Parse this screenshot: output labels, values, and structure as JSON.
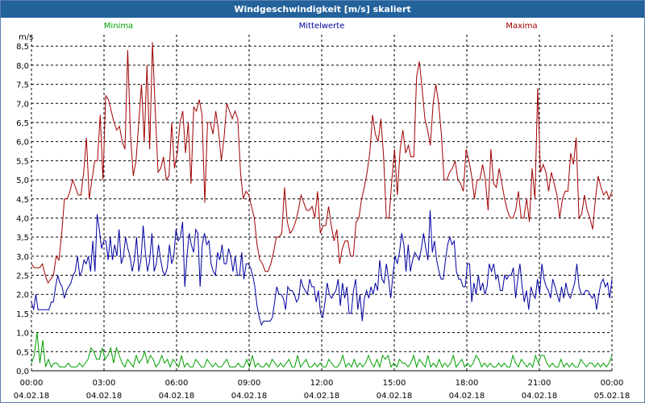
{
  "window": {
    "title": "Windgeschwindigkeit [m/s] skaliert"
  },
  "chart_data": {
    "type": "line",
    "title": "Windgeschwindigkeit [m/s] skaliert",
    "ylabel": "m/s",
    "ylim": [
      0,
      8.5
    ],
    "yticks": [
      "0,0",
      "0,5",
      "1,0",
      "1,5",
      "2,0",
      "2,5",
      "3,0",
      "3,5",
      "4,0",
      "4,5",
      "5,0",
      "5,5",
      "6,0",
      "6,5",
      "7,0",
      "7,5",
      "8,0",
      "8,5"
    ],
    "xlim": [
      0,
      24
    ],
    "xticks": [
      {
        "time": "00:00",
        "date": "04.02.18"
      },
      {
        "time": "03:00",
        "date": "04.02.18"
      },
      {
        "time": "06:00",
        "date": "04.02.18"
      },
      {
        "time": "09:00",
        "date": "04.02.18"
      },
      {
        "time": "12:00",
        "date": "04.02.18"
      },
      {
        "time": "15:00",
        "date": "04.02.18"
      },
      {
        "time": "18:00",
        "date": "04.02.18"
      },
      {
        "time": "21:00",
        "date": "04.02.18"
      },
      {
        "time": "00:00",
        "date": "05.02.18"
      }
    ],
    "grid": true,
    "legend_position": "top",
    "series": [
      {
        "name": "Minima",
        "color": "#00a000",
        "values": [
          0.2,
          0.4,
          1.0,
          0.2,
          0.8,
          0.1,
          0.3,
          0.1,
          0.2,
          0.2,
          0.1,
          0.1,
          0.1,
          0.2,
          0.1,
          0.1,
          0.1,
          0.2,
          0.1,
          0.2,
          0.3,
          0.6,
          0.5,
          0.3,
          0.3,
          0.6,
          0.3,
          0.4,
          0.6,
          0.2,
          0.6,
          0.4,
          0.2,
          0.1,
          0.3,
          0.2,
          0.1,
          0.4,
          0.2,
          0.3,
          0.5,
          0.2,
          0.4,
          0.3,
          0.1,
          0.2,
          0.4,
          0.2,
          0.3,
          0.1,
          0.3,
          0.2,
          0.1,
          0.4,
          0.1,
          0.2,
          0.1,
          0.1,
          0.3,
          0.2,
          0.1,
          0.1,
          0.3,
          0.2,
          0.1,
          0.2,
          0.1,
          0.1,
          0.2,
          0.3,
          0.1,
          0.1,
          0.1,
          0.2,
          0.1,
          0.1,
          0.3,
          0.1,
          0.4,
          0.1,
          0.2,
          0.1,
          0.1,
          0.2,
          0.1,
          0.3,
          0.2,
          0.1,
          0.2,
          0.1,
          0.2,
          0.3,
          0.1,
          0.1,
          0.4,
          0.1,
          0.2,
          0.3,
          0.1,
          0.1,
          0.2,
          0.1,
          0.2,
          0.1,
          0.1,
          0.3,
          0.2,
          0.1,
          0.1,
          0.2,
          0.4,
          0.1,
          0.2,
          0.1,
          0.3,
          0.1,
          0.2,
          0.1,
          0.2,
          0.4,
          0.2,
          0.1,
          0.3,
          0.1,
          0.4,
          0.3,
          0.4,
          0.1,
          0.2,
          0.1,
          0.3,
          0.2,
          0.2,
          0.1,
          0.2,
          0.4,
          0.1,
          0.3,
          0.2,
          0.1,
          0.4,
          0.1,
          0.2,
          0.1,
          0.3,
          0.1,
          0.2,
          0.1,
          0.2,
          0.4,
          0.1,
          0.2,
          0.3,
          0.1,
          0.2,
          0.1,
          0.2,
          0.4,
          0.3,
          0.1,
          0.2,
          0.1,
          0.2,
          0.1,
          0.1,
          0.2,
          0.1,
          0.2,
          0.1,
          0.1,
          0.4,
          0.2,
          0.1,
          0.3,
          0.2,
          0.1,
          0.2,
          0.1,
          0.4,
          0.2,
          0.4,
          0.4,
          0.2,
          0.1,
          0.2,
          0.1,
          0.1,
          0.3,
          0.1,
          0.2,
          0.1,
          0.2,
          0.1,
          0.1,
          0.3,
          0.2,
          0.1,
          0.2,
          0.2,
          0.1,
          0.2,
          0.1,
          0.2,
          0.1,
          0.2,
          0.4
        ]
      },
      {
        "name": "Mittelwerte",
        "color": "#0000a0",
        "values": [
          1.8,
          1.6,
          2.0,
          1.6,
          1.6,
          1.6,
          1.6,
          1.6,
          1.6,
          1.8,
          1.8,
          2.2,
          2.5,
          2.3,
          2.2,
          1.9,
          2.1,
          2.2,
          2.3,
          2.5,
          2.6,
          3.0,
          2.5,
          2.6,
          2.9,
          2.8,
          3.0,
          2.6,
          3.4,
          2.6,
          4.1,
          3.7,
          3.2,
          3.4,
          3.4,
          2.9,
          3.5,
          2.9,
          3.3,
          3.0,
          3.7,
          2.8,
          3.0,
          3.5,
          3.2,
          3.0,
          2.6,
          2.9,
          3.5,
          2.6,
          2.9,
          3.8,
          3.1,
          2.6,
          2.9,
          3.6,
          2.6,
          2.8,
          3.3,
          2.9,
          2.6,
          2.5,
          2.7,
          3.3,
          2.8,
          3.0,
          3.7,
          3.4,
          3.5,
          3.9,
          2.2,
          3.0,
          3.6,
          3.3,
          3.1,
          3.7,
          3.6,
          2.2,
          3.3,
          3.6,
          3.3,
          3.4,
          2.8,
          2.6,
          2.5,
          3.1,
          2.9,
          3.3,
          2.8,
          2.8,
          3.2,
          3.0,
          2.6,
          3.0,
          2.5,
          2.5,
          3.1,
          2.4,
          2.8,
          2.8,
          2.7,
          2.5,
          2.2,
          1.7,
          1.4,
          1.2,
          1.3,
          1.3,
          1.3,
          1.3,
          1.4,
          1.8,
          2.2,
          2.0,
          2.0,
          1.9,
          1.6,
          2.2,
          2.1,
          2.1,
          2.0,
          1.8,
          1.9,
          2.4,
          2.2,
          2.1,
          2.0,
          2.4,
          2.2,
          2.2,
          1.8,
          2.1,
          1.5,
          1.4,
          1.8,
          2.3,
          2.0,
          1.9,
          2.0,
          2.1,
          2.4,
          1.7,
          2.3,
          1.9,
          2.2,
          1.5,
          1.5,
          2.1,
          2.4,
          1.6,
          2.0,
          1.3,
          1.9,
          2.1,
          1.9,
          2.2,
          2.0,
          2.3,
          2.1,
          2.9,
          2.4,
          2.3,
          2.8,
          2.4,
          1.9,
          2.5,
          3.0,
          2.8,
          3.1,
          3.6,
          3.3,
          2.6,
          3.3,
          2.6,
          2.9,
          3.1,
          3.0,
          2.9,
          3.2,
          3.6,
          3.2,
          2.9,
          4.2,
          3.1,
          3.4,
          2.9,
          2.6,
          2.4,
          2.4,
          2.9,
          3.3,
          3.5,
          3.3,
          3.4,
          2.6,
          2.4,
          2.4,
          2.2,
          2.2,
          2.8,
          2.8,
          1.8,
          2.3,
          2.0,
          2.5,
          2.1,
          2.3,
          2.0,
          2.2,
          2.8,
          2.6,
          2.8,
          2.4,
          2.5,
          2.1,
          2.1,
          2.5,
          2.4,
          2.5,
          2.5,
          2.7,
          1.9,
          2.4,
          2.8,
          2.2,
          1.8,
          2.1,
          1.6,
          2.2,
          2.0,
          1.9,
          2.4,
          2.0,
          2.8,
          2.4,
          2.2,
          2.1,
          1.9,
          2.4,
          2.2,
          2.0,
          1.8,
          2.2,
          1.9,
          2.3,
          2.0,
          1.9,
          2.1,
          2.3,
          2.8,
          2.2,
          2.0,
          2.0,
          2.1,
          2.1,
          2.0,
          1.9,
          2.0,
          1.6,
          2.0,
          2.3,
          2.4,
          2.2,
          2.3,
          1.9,
          2.4
        ]
      },
      {
        "name": "Maxima",
        "color": "#a00000",
        "values": [
          2.8,
          2.7,
          2.7,
          2.7,
          2.8,
          2.5,
          2.3,
          2.4,
          2.5,
          3.0,
          2.9,
          3.6,
          4.5,
          4.5,
          4.7,
          5.0,
          4.8,
          4.6,
          4.6,
          5.2,
          6.1,
          4.5,
          5.0,
          5.5,
          5.5,
          6.7,
          5.0,
          7.2,
          7.1,
          6.8,
          6.5,
          6.3,
          6.4,
          6.0,
          5.8,
          8.4,
          6.2,
          5.1,
          5.5,
          6.5,
          7.5,
          6.0,
          8.0,
          5.8,
          8.6,
          6.8,
          5.2,
          5.3,
          5.6,
          5.0,
          5.1,
          6.5,
          5.3,
          5.7,
          6.5,
          6.8,
          5.7,
          6.5,
          4.9,
          6.9,
          6.8,
          7.1,
          6.7,
          4.4,
          6.5,
          6.5,
          6.2,
          6.8,
          6.3,
          5.5,
          6.1,
          7.0,
          6.8,
          6.6,
          6.8,
          6.6,
          5.2,
          4.5,
          4.7,
          4.6,
          4.3,
          4.0,
          3.3,
          2.9,
          2.8,
          2.6,
          2.6,
          2.8,
          3.1,
          3.5,
          3.5,
          3.6,
          4.8,
          3.9,
          3.6,
          3.7,
          3.9,
          4.2,
          4.6,
          4.4,
          4.2,
          4.2,
          4.3,
          4.0,
          4.7,
          3.6,
          3.8,
          3.8,
          4.3,
          3.8,
          3.4,
          3.7,
          2.8,
          3.2,
          3.4,
          3.4,
          3.0,
          3.0,
          3.9,
          4.0,
          4.5,
          4.8,
          5.2,
          5.7,
          6.7,
          6.2,
          6.0,
          6.6,
          5.6,
          4.0,
          4.0,
          5.0,
          5.8,
          4.6,
          5.8,
          6.3,
          5.7,
          5.9,
          5.6,
          5.6,
          7.7,
          8.1,
          7.4,
          6.6,
          6.3,
          5.9,
          7.0,
          7.5,
          7.0,
          6.2,
          5.0,
          5.0,
          5.2,
          5.3,
          5.5,
          5.0,
          4.9,
          4.7,
          5.8,
          5.5,
          5.1,
          4.5,
          5.0,
          5.0,
          5.4,
          5.0,
          4.2,
          5.8,
          4.9,
          4.8,
          5.3,
          4.9,
          4.5,
          4.2,
          4.0,
          4.0,
          4.2,
          4.7,
          4.0,
          4.0,
          4.5,
          3.9,
          5.3,
          4.5,
          7.4,
          5.2,
          5.4,
          5.2,
          4.7,
          5.2,
          4.9,
          4.6,
          4.0,
          4.5,
          4.7,
          4.7,
          5.7,
          5.4,
          6.1,
          4.0,
          4.1,
          4.6,
          4.2,
          4.0,
          3.7,
          4.5,
          5.1,
          4.8,
          4.6,
          4.7,
          4.5,
          4.7
        ]
      }
    ]
  }
}
